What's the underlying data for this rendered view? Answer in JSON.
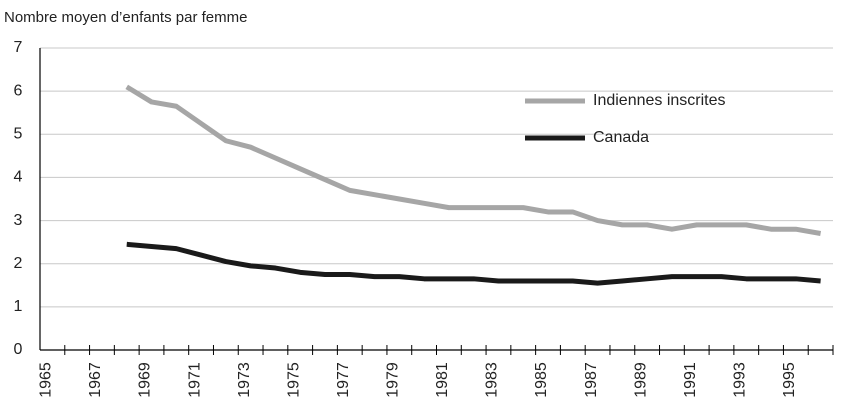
{
  "chart_data": {
    "type": "line",
    "title": "Nombre moyen d’enfants par femme",
    "categories": [
      "1965",
      null,
      "1967",
      null,
      "1969",
      null,
      "1971",
      null,
      "1973",
      null,
      "1975",
      null,
      "1977",
      null,
      "1979",
      null,
      "1981",
      null,
      "1983",
      null,
      "1985",
      null,
      "1987",
      null,
      "1989",
      null,
      "1991",
      null,
      "1993",
      null,
      "1995",
      null
    ],
    "series": [
      {
        "name": "Indiennes inscrites",
        "color": "#a6a6a6",
        "values": [
          null,
          null,
          null,
          6.1,
          5.75,
          5.65,
          5.25,
          4.85,
          4.7,
          4.45,
          4.2,
          3.95,
          3.7,
          3.6,
          3.5,
          3.4,
          3.3,
          3.3,
          3.3,
          3.3,
          3.2,
          3.2,
          3.0,
          2.9,
          2.9,
          2.8,
          2.9,
          2.9,
          2.9,
          2.8,
          2.8,
          2.7
        ]
      },
      {
        "name": "Canada",
        "color": "#1a1a1a",
        "values": [
          null,
          null,
          null,
          2.45,
          2.4,
          2.35,
          2.2,
          2.05,
          1.95,
          1.9,
          1.8,
          1.75,
          1.75,
          1.7,
          1.7,
          1.65,
          1.65,
          1.65,
          1.6,
          1.6,
          1.6,
          1.6,
          1.55,
          1.6,
          1.65,
          1.7,
          1.7,
          1.7,
          1.65,
          1.65,
          1.65,
          1.6
        ]
      }
    ],
    "ylim": [
      0,
      7
    ],
    "yticks": [
      0,
      1,
      2,
      3,
      4,
      5,
      6,
      7
    ],
    "grid": true,
    "legend": "top-right"
  }
}
